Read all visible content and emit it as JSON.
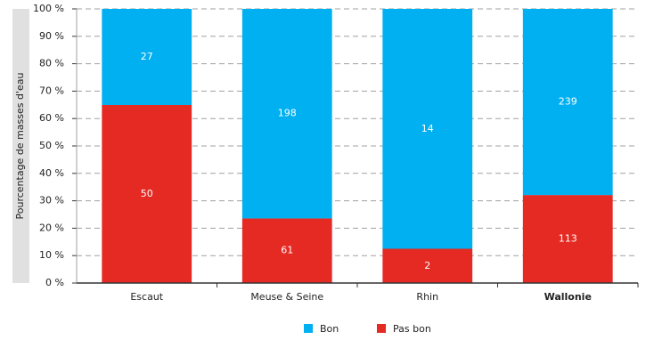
{
  "chart_data": {
    "type": "bar",
    "stack": "percent",
    "y_label": "Pourcentage de masses d'eau",
    "categories": [
      "Escaut",
      "Meuse & Seine",
      "Rhin",
      "Wallonie"
    ],
    "emphasize_last_category": true,
    "series": [
      {
        "name": "Bon",
        "color": "#00b0f0",
        "values": [
          27,
          198,
          14,
          239
        ]
      },
      {
        "name": "Pas bon",
        "color": "#e52a24",
        "values": [
          50,
          61,
          2,
          113
        ]
      }
    ],
    "ylim": [
      0,
      100
    ],
    "yticks": [
      {
        "value": 0,
        "label": "0 %"
      },
      {
        "value": 10,
        "label": "10 %"
      },
      {
        "value": 20,
        "label": "20 %"
      },
      {
        "value": 30,
        "label": "30 %"
      },
      {
        "value": 40,
        "label": "40 %"
      },
      {
        "value": 50,
        "label": "50 %"
      },
      {
        "value": 60,
        "label": "60 %"
      },
      {
        "value": 70,
        "label": "70 %"
      },
      {
        "value": 80,
        "label": "80 %"
      },
      {
        "value": 90,
        "label": "90 %"
      },
      {
        "value": 100,
        "label": "100 %"
      }
    ],
    "grid": true,
    "legend": "bottom"
  }
}
